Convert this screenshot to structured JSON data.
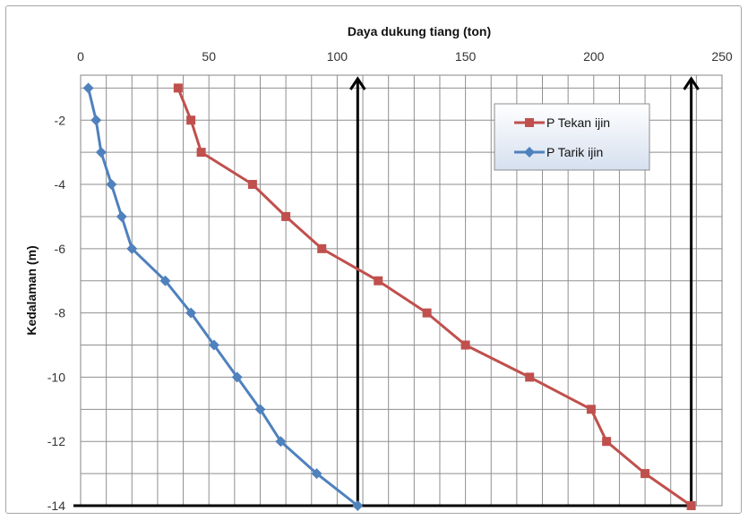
{
  "chart_data": {
    "type": "line",
    "title": "",
    "xlabel": "Daya dukung tiang (ton)",
    "ylabel": "Kedalaman (m)",
    "x_axis_position": "top",
    "xlim": [
      0,
      250
    ],
    "ylim": [
      -14,
      -0.6
    ],
    "x_ticks": [
      0,
      50,
      100,
      150,
      200,
      250
    ],
    "y_ticks": [
      -2,
      -4,
      -6,
      -8,
      -10,
      -12,
      -14
    ],
    "x_tick_labels": [
      "0",
      "50",
      "100",
      "150",
      "200",
      "250"
    ],
    "y_tick_labels": [
      "-2",
      "-4",
      "-6",
      "-8",
      "-10",
      "-12",
      "-14"
    ],
    "grid": true,
    "legend_position": "top-right",
    "series": [
      {
        "name": "P Tekan ijin",
        "color": "#C0504D",
        "marker": "square",
        "points": [
          {
            "x": 38,
            "y": -1
          },
          {
            "x": 43,
            "y": -2
          },
          {
            "x": 47,
            "y": -3
          },
          {
            "x": 67,
            "y": -4
          },
          {
            "x": 80,
            "y": -5
          },
          {
            "x": 94,
            "y": -6
          },
          {
            "x": 116,
            "y": -7
          },
          {
            "x": 135,
            "y": -8
          },
          {
            "x": 150,
            "y": -9
          },
          {
            "x": 175,
            "y": -10
          },
          {
            "x": 199,
            "y": -11
          },
          {
            "x": 205,
            "y": -12
          },
          {
            "x": 220,
            "y": -13
          },
          {
            "x": 238,
            "y": -14
          }
        ]
      },
      {
        "name": "P Tarik ijin",
        "color": "#4F81BD",
        "marker": "diamond",
        "points": [
          {
            "x": 3,
            "y": -1
          },
          {
            "x": 6,
            "y": -2
          },
          {
            "x": 8,
            "y": -3
          },
          {
            "x": 12,
            "y": -4
          },
          {
            "x": 16,
            "y": -5
          },
          {
            "x": 20,
            "y": -6
          },
          {
            "x": 33,
            "y": -7
          },
          {
            "x": 43,
            "y": -8
          },
          {
            "x": 52,
            "y": -9
          },
          {
            "x": 61,
            "y": -10
          },
          {
            "x": 70,
            "y": -11
          },
          {
            "x": 78,
            "y": -12
          },
          {
            "x": 92,
            "y": -13
          },
          {
            "x": 108,
            "y": -14
          }
        ]
      }
    ],
    "annotations": [
      {
        "type": "arrow",
        "x": 108,
        "y_from": -14,
        "y_to": -0.6,
        "color": "#000000"
      },
      {
        "type": "arrow",
        "x": 238,
        "y_from": -14,
        "y_to": -0.6,
        "color": "#000000"
      },
      {
        "type": "line",
        "x_from": 0,
        "x_to": 238,
        "y": -14,
        "color": "#000000"
      }
    ]
  }
}
